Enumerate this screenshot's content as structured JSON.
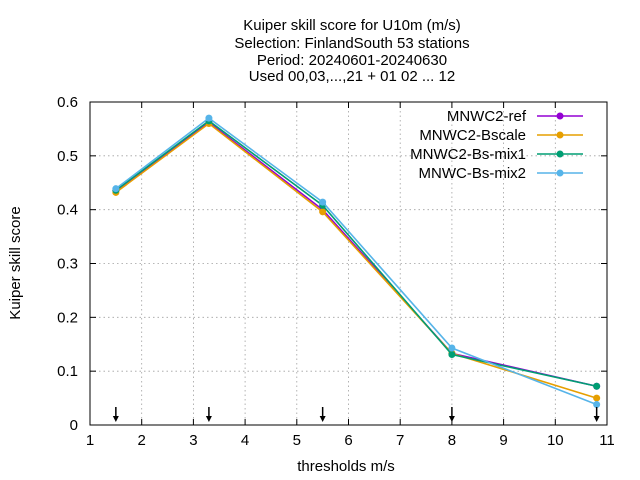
{
  "chart_data": {
    "type": "line",
    "title_lines": [
      "Kuiper skill score  for U10m (m/s)",
      "Selection: FinlandSouth     53 stations",
      "Period: 20240601-20240630",
      "Used 00,03,...,21 + 01 02 ... 12"
    ],
    "xlabel": "thresholds m/s",
    "ylabel": "Kuiper skill score",
    "xlim": [
      1,
      11
    ],
    "ylim": [
      0,
      0.6
    ],
    "xticks": [
      1,
      2,
      3,
      4,
      5,
      6,
      7,
      8,
      9,
      10,
      11
    ],
    "xtick_labels": [
      "1",
      "2",
      "3",
      "4",
      "5",
      "6",
      "7",
      "8",
      "9",
      "10",
      "11"
    ],
    "yticks": [
      0,
      0.1,
      0.2,
      0.3,
      0.4,
      0.5,
      0.6
    ],
    "ytick_labels": [
      "0",
      "0.1",
      "0.2",
      "0.3",
      "0.4",
      "0.5",
      "0.6"
    ],
    "grid": true,
    "legend_position": "top-right",
    "x": [
      1.5,
      3.3,
      5.5,
      8.0,
      10.8
    ],
    "markers_x": [
      1.5,
      3.3,
      5.5,
      8.0,
      10.8
    ],
    "series": [
      {
        "name": "MNWC2-ref",
        "color": "#9400d3",
        "values": [
          0.435,
          0.562,
          0.4,
          0.133,
          0.072
        ]
      },
      {
        "name": "MNWC2-Bscale",
        "color": "#e69f00",
        "values": [
          0.432,
          0.56,
          0.396,
          0.133,
          0.05
        ]
      },
      {
        "name": "MNWC2-Bs-mix1",
        "color": "#009e73",
        "values": [
          0.436,
          0.565,
          0.408,
          0.131,
          0.072
        ]
      },
      {
        "name": "MNWC-Bs-mix2",
        "color": "#56b4e9",
        "values": [
          0.439,
          0.57,
          0.414,
          0.143,
          0.038
        ]
      }
    ]
  }
}
